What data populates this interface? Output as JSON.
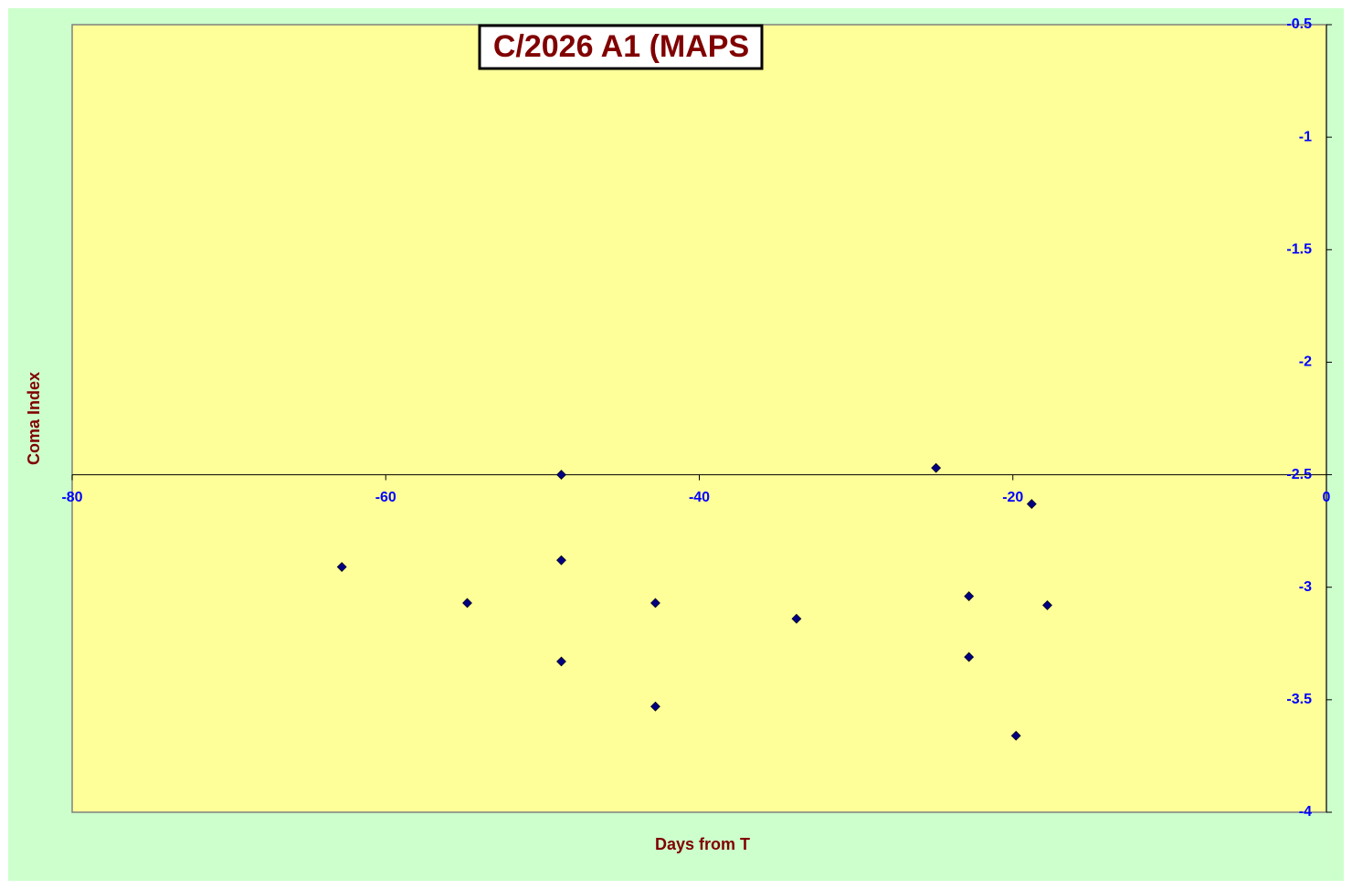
{
  "chart_data": {
    "type": "scatter",
    "title": "C/2026 A1 (MAPS",
    "x_label": "Days from T",
    "y_label": "Coma Index",
    "series": [
      {
        "name": "Coma Index",
        "color": "#000080",
        "x": [
          -62.8,
          -54.8,
          -48.8,
          -48.8,
          -48.8,
          -42.8,
          -42.8,
          -33.8,
          -24.9,
          -22.8,
          -22.8,
          -19.8,
          -18.8,
          -17.8
        ],
        "values": [
          -2.91,
          -3.07,
          -2.5,
          -2.88,
          -3.33,
          -3.07,
          -3.53,
          -3.14,
          -2.47,
          -3.04,
          -3.31,
          -3.66,
          -2.63,
          -3.08
        ]
      }
    ],
    "xlim": [
      -80,
      0
    ],
    "xticks": [
      -80,
      -60,
      -40,
      -20,
      0
    ],
    "ylim": [
      -4,
      -0.5
    ],
    "yticks": [
      -0.5,
      -1,
      -1.5,
      -2,
      -2.5,
      -3,
      -3.5,
      -4
    ],
    "x_axis_crosses_y_at": -2.5,
    "y_axis_side": "right"
  }
}
